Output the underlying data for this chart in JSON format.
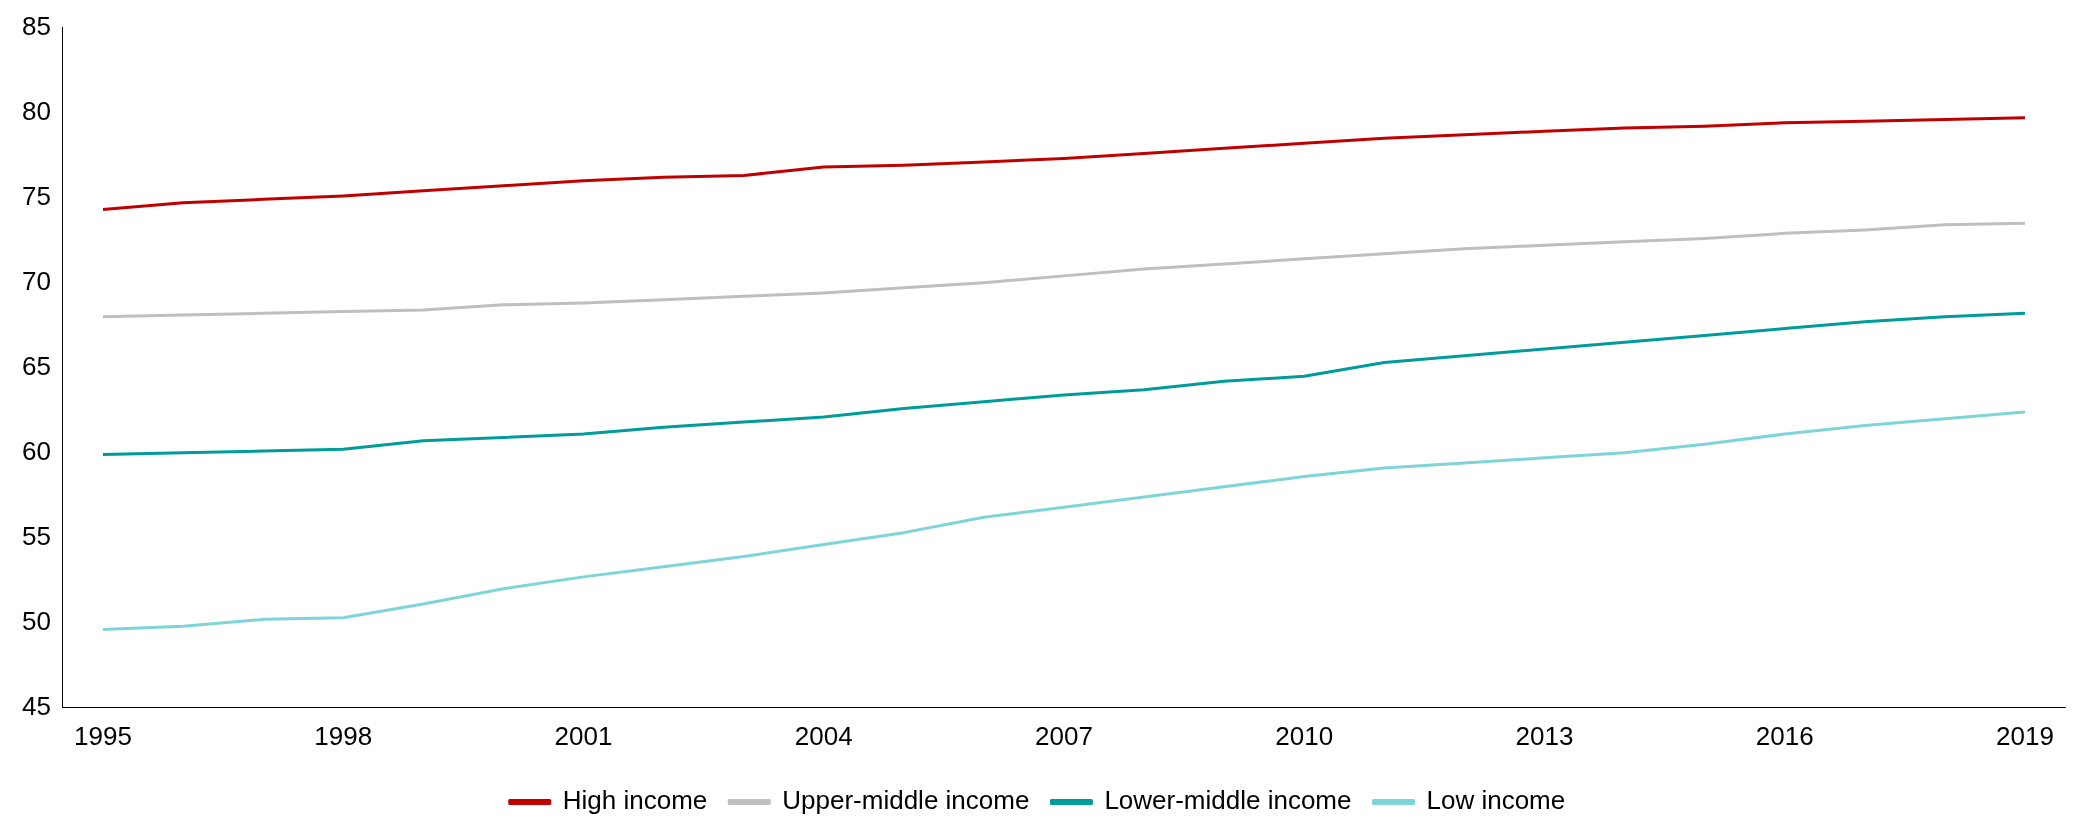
{
  "chart_data": {
    "type": "line",
    "categories": [
      "1995",
      null,
      null,
      "1998",
      null,
      null,
      "2001",
      null,
      null,
      "2004",
      null,
      null,
      "2007",
      null,
      null,
      "2010",
      null,
      null,
      "2013",
      null,
      null,
      "2016",
      null,
      null,
      "2019"
    ],
    "series": [
      {
        "name": "High income",
        "color": "#c00000",
        "values": [
          74.3,
          74.7,
          74.9,
          75.1,
          75.4,
          75.7,
          76.0,
          76.2,
          76.3,
          76.8,
          76.9,
          77.1,
          77.3,
          77.6,
          77.9,
          78.2,
          78.5,
          78.7,
          78.9,
          79.1,
          79.2,
          79.4,
          79.5,
          79.6,
          79.7
        ]
      },
      {
        "name": "Upper-middle income",
        "color": "#bfbfbf",
        "values": [
          68.0,
          68.1,
          68.2,
          68.3,
          68.4,
          68.7,
          68.8,
          69.0,
          69.2,
          69.4,
          69.7,
          70.0,
          70.4,
          70.8,
          71.1,
          71.4,
          71.7,
          72.0,
          72.2,
          72.4,
          72.6,
          72.9,
          73.1,
          73.4,
          73.5
        ]
      },
      {
        "name": "Lower-middle income",
        "color": "#009b9b",
        "values": [
          59.9,
          60.0,
          60.1,
          60.2,
          60.7,
          60.9,
          61.1,
          61.5,
          61.8,
          62.1,
          62.6,
          63.0,
          63.4,
          63.7,
          64.2,
          64.5,
          65.3,
          65.7,
          66.1,
          66.5,
          66.9,
          67.3,
          67.7,
          68.0,
          68.2
        ]
      },
      {
        "name": "Low income",
        "color": "#7dd5da",
        "values": [
          49.6,
          49.8,
          50.2,
          50.3,
          51.1,
          52.0,
          52.7,
          53.3,
          53.9,
          54.6,
          55.3,
          56.2,
          56.8,
          57.4,
          58.0,
          58.6,
          59.1,
          59.4,
          59.7,
          60.0,
          60.5,
          61.1,
          61.6,
          62.0,
          62.4
        ]
      }
    ],
    "ylim": [
      45,
      85
    ],
    "yticks": [
      45,
      50,
      55,
      60,
      65,
      70,
      75,
      80,
      85
    ],
    "grid": false,
    "legend": "bottom",
    "marker": "none",
    "line_style": "solid"
  }
}
